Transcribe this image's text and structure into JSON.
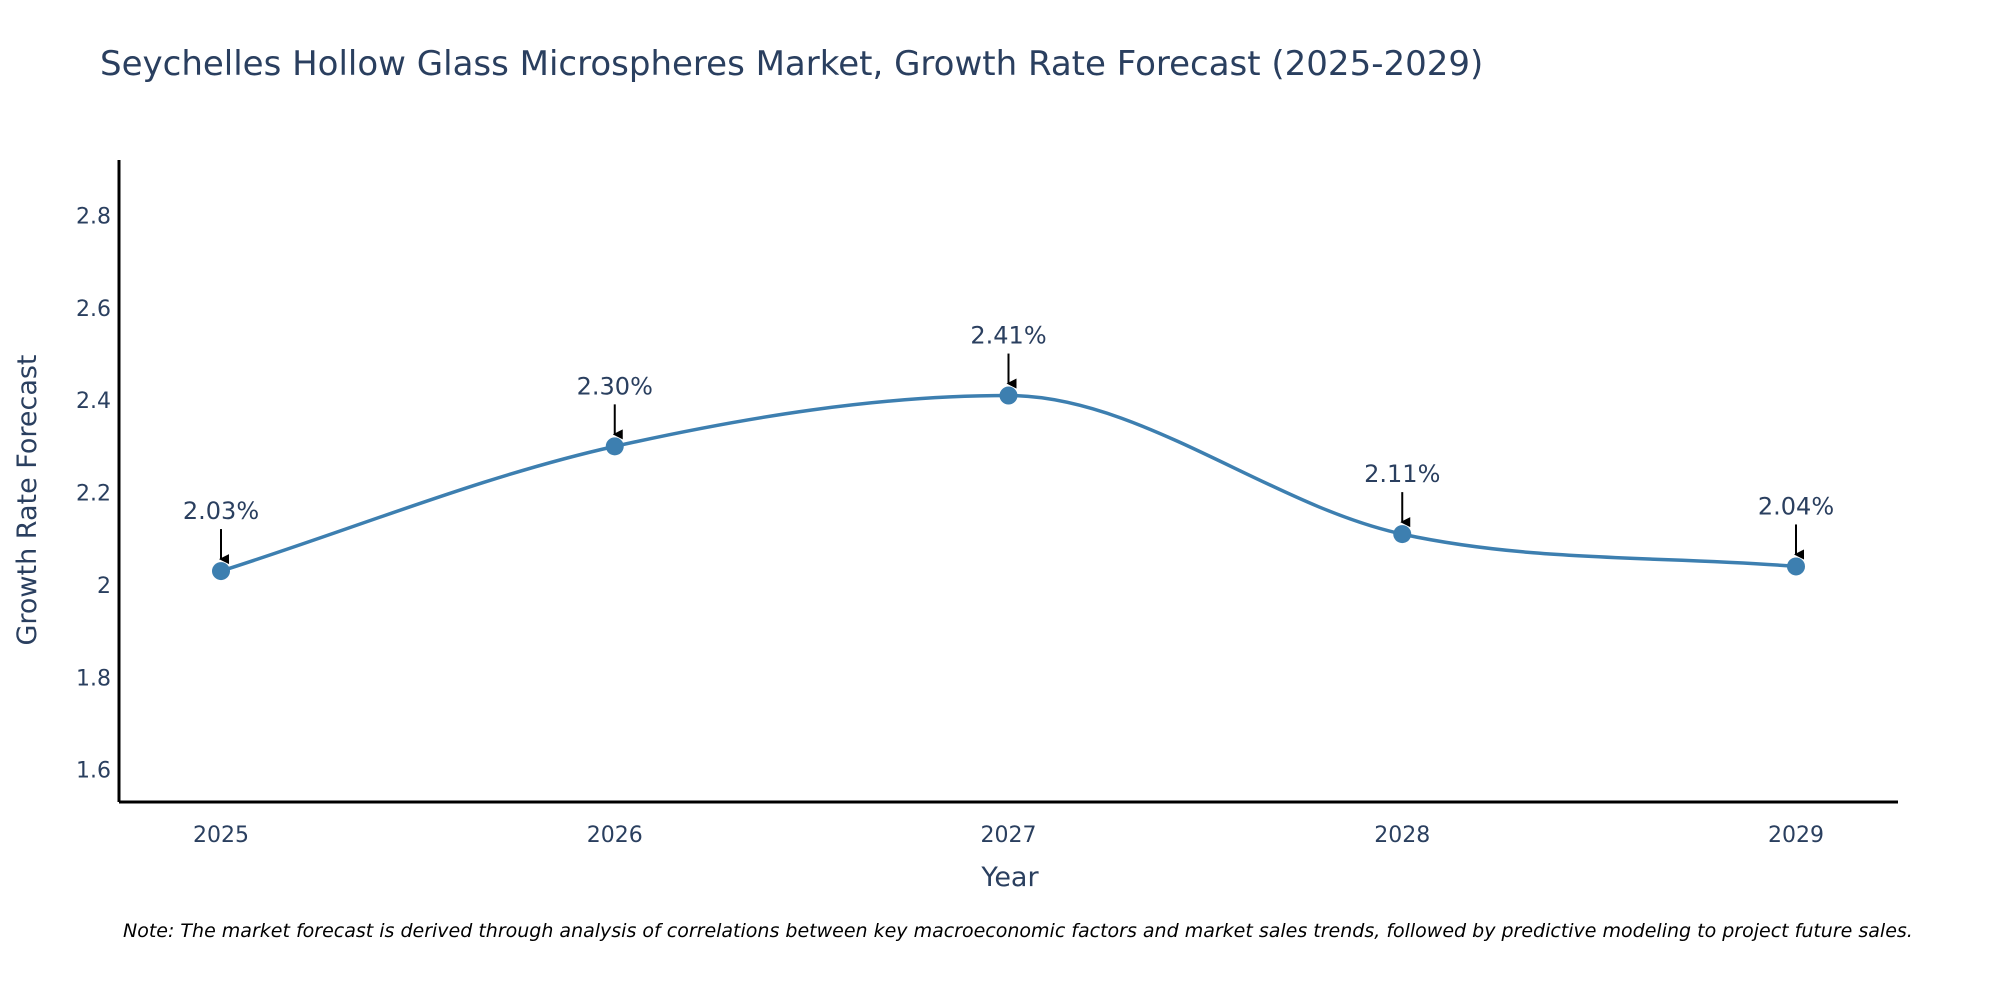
{
  "chart_data": {
    "type": "line",
    "title": "Seychelles Hollow Glass Microspheres Market, Growth Rate Forecast (2025-2029)",
    "xlabel": "Year",
    "ylabel": "Growth Rate Forecast",
    "categories": [
      "2025",
      "2026",
      "2027",
      "2028",
      "2029"
    ],
    "series": [
      {
        "name": "Growth Rate Forecast",
        "values": [
          2.03,
          2.3,
          2.41,
          2.11,
          2.04
        ],
        "labels": [
          "2.03%",
          "2.30%",
          "2.41%",
          "2.11%",
          "2.04%"
        ]
      }
    ],
    "ylim": [
      1.53,
      2.92
    ],
    "yticks": [
      1.6,
      1.8,
      2,
      2.2,
      2.4,
      2.6,
      2.8
    ],
    "ytick_labels": [
      "1.6",
      "1.8",
      "2",
      "2.2",
      "2.4",
      "2.6",
      "2.8"
    ],
    "grid": false,
    "line_shape": "spline",
    "colors": {
      "line": "#3d7fb0",
      "marker": "#3d7fb0",
      "axis": "#000000",
      "text": "#2a3f5f",
      "arrow": "#000000"
    },
    "note": "Note: The market forecast is derived through analysis of correlations between key macroeconomic factors and market sales trends, followed by predictive modeling to project future sales."
  }
}
